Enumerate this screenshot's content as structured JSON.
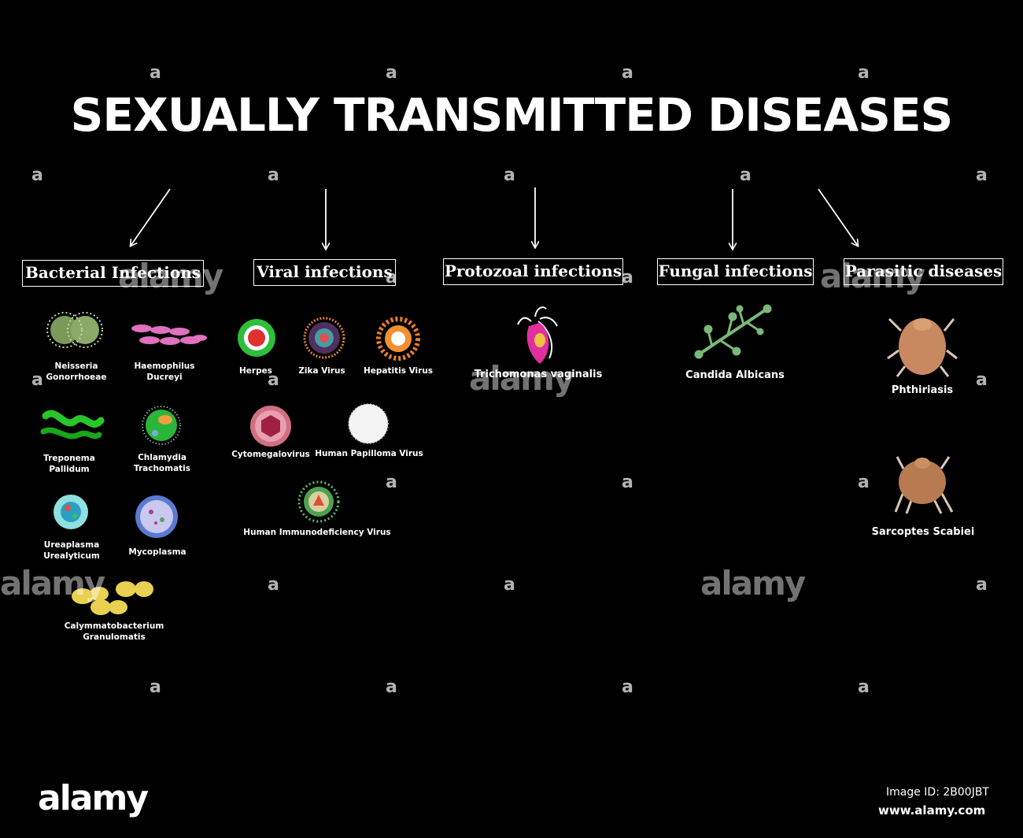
{
  "title": "SEXUALLY TRANSMITTED DISEASES",
  "categories": [
    {
      "label": "Bacterial Infections"
    },
    {
      "label": "Viral infections"
    },
    {
      "label": "Protozoal infections"
    },
    {
      "label": "Fungal infections"
    },
    {
      "label": "Parasitic diseases"
    }
  ],
  "bacterial": [
    [
      "Neisseria",
      "Gonorrhoeae"
    ],
    [
      "Haemophilus",
      "Ducreyi"
    ],
    [
      "Treponema",
      "Pallidum"
    ],
    [
      "Chlamydia",
      "Trachomatis"
    ],
    [
      "Ureaplasma",
      "Urealyticum"
    ],
    [
      "Mycoplasma"
    ],
    [
      "Calymmatobacterium",
      "Granulomatis"
    ]
  ],
  "viral": [
    "Herpes",
    "Zika Virus",
    "Hepatitis Virus",
    "Cytomegalovirus",
    "Human Papilloma Virus",
    "Human Immunodeficiency Virus"
  ],
  "protozoal": [
    "Trichomonas vaginalis"
  ],
  "fungal": [
    "Candida Albicans"
  ],
  "parasitic": [
    "Phthiriasis",
    "Sarcoptes Scabiei"
  ],
  "watermark": {
    "letter": "a",
    "word": "alamy"
  },
  "footer": {
    "logo": "alamy",
    "image_id": "Image ID: 2B00JBT",
    "site": "www.alamy.com"
  },
  "colors": {
    "background": "#000000",
    "text": "#ffffff"
  }
}
